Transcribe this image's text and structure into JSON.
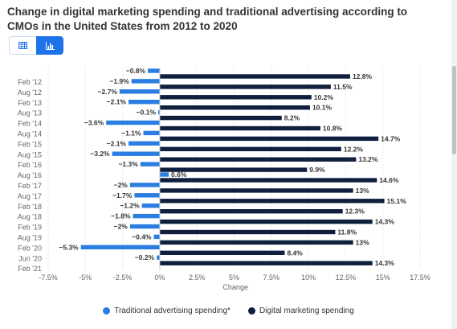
{
  "title": "Change in digital marketing spending and traditional advertising according to CMOs in the United States from 2012 to 2020",
  "colors": {
    "traditional": "#2a7de1",
    "digital": "#0f1f3d",
    "accent": "#1e73e8"
  },
  "icons": {
    "table": "table-icon",
    "chart": "bar-chart-icon"
  },
  "chart_data": {
    "type": "bar",
    "orientation": "horizontal",
    "xlabel": "Change",
    "xlim": [
      -7.5,
      17.5
    ],
    "xticks": [
      "-7.5%",
      "-5%",
      "-2.5%",
      "0%",
      "2.5%",
      "5%",
      "7.5%",
      "10%",
      "12.5%",
      "15%",
      "17.5%"
    ],
    "xtick_values": [
      -7.5,
      -5,
      -2.5,
      0,
      2.5,
      5,
      7.5,
      10,
      12.5,
      15,
      17.5
    ],
    "grid": true,
    "legend_position": "bottom",
    "categories": [
      "Feb '12",
      "Aug '12",
      "Feb '13",
      "Aug '13",
      "Feb '14",
      "Aug '14",
      "Feb '15",
      "Aug '15",
      "Feb '16",
      "Aug '16",
      "Feb '17",
      "Aug '17",
      "Feb '18",
      "Aug '18",
      "Feb '19",
      "Aug '19",
      "Feb '20",
      "Jun '20",
      "Feb '21"
    ],
    "series": [
      {
        "name": "Traditional advertising spending*",
        "values": [
          -0.8,
          -1.9,
          -2.7,
          -2.1,
          -0.1,
          -3.6,
          -1.1,
          -2.1,
          -3.2,
          -1.3,
          0.6,
          -2,
          -1.7,
          -1.2,
          -1.8,
          -2,
          -0.4,
          -5.3,
          -0.2
        ],
        "labels": [
          "−0.8%",
          "−1.9%",
          "−2.7%",
          "−2.1%",
          "−0.1%",
          "−3.6%",
          "−1.1%",
          "−2.1%",
          "−3.2%",
          "−1.3%",
          "0.6%",
          "−2%",
          "−1.7%",
          "−1.2%",
          "−1.8%",
          "−2%",
          "−0.4%",
          "−5.3%",
          "−0.2%"
        ]
      },
      {
        "name": "Digital marketing spending",
        "values": [
          12.8,
          11.5,
          10.2,
          10.1,
          8.2,
          10.8,
          14.7,
          12.2,
          13.2,
          9.9,
          14.6,
          13,
          15.1,
          12.3,
          14.3,
          11.8,
          13,
          8.4,
          14.3
        ],
        "labels": [
          "12.8%",
          "11.5%",
          "10.2%",
          "10.1%",
          "8.2%",
          "10.8%",
          "14.7%",
          "12.2%",
          "13.2%",
          "9.9%",
          "14.6%",
          "13%",
          "15.1%",
          "12.3%",
          "14.3%",
          "11.8%",
          "13%",
          "8.4%",
          "14.3%"
        ]
      }
    ]
  }
}
